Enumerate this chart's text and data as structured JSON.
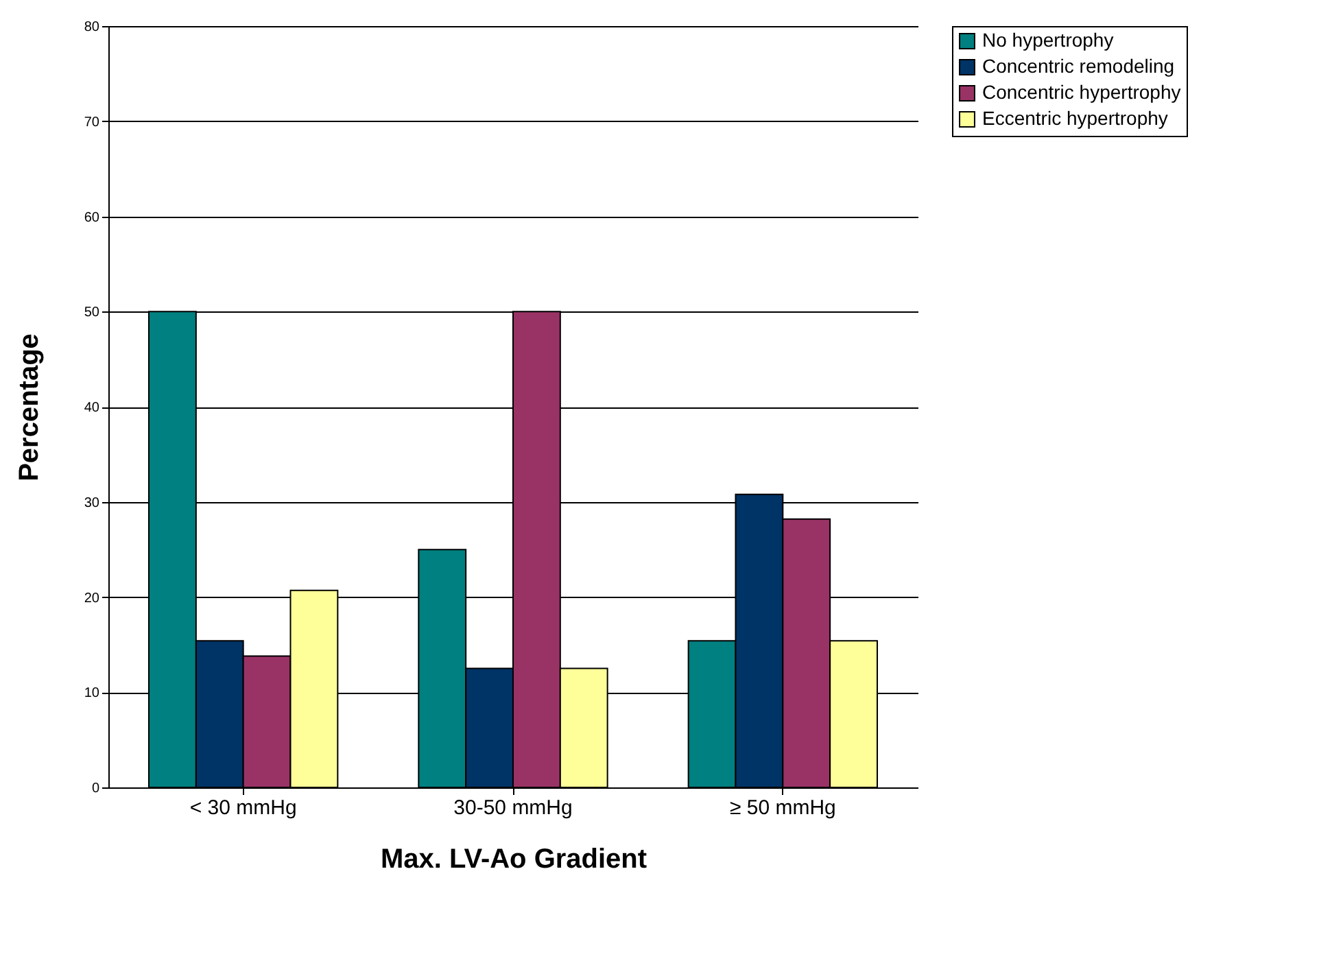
{
  "chart_data": {
    "type": "bar",
    "xlabel": "Max. LV-Ao Gradient",
    "ylabel": "Percentage",
    "categories": [
      "< 30 mmHg",
      "30-50 mmHg",
      "≥ 50 mmHg"
    ],
    "series": [
      {
        "name": "No hypertrophy",
        "color": "#008080",
        "values": [
          50,
          25,
          15.4
        ]
      },
      {
        "name": "Concentric remodeling",
        "color": "#003366",
        "values": [
          15.4,
          12.5,
          30.8
        ]
      },
      {
        "name": "Concentric hypertrophy",
        "color": "#993366",
        "values": [
          13.8,
          50,
          28.2
        ]
      },
      {
        "name": "Eccentric hypertrophy",
        "color": "#ffff99",
        "values": [
          20.7,
          12.5,
          15.4
        ]
      }
    ],
    "ylim": [
      0,
      80
    ],
    "yticks": [
      0,
      10,
      20,
      30,
      40,
      50,
      60,
      70,
      80
    ],
    "grid": "y",
    "legend": "right"
  }
}
